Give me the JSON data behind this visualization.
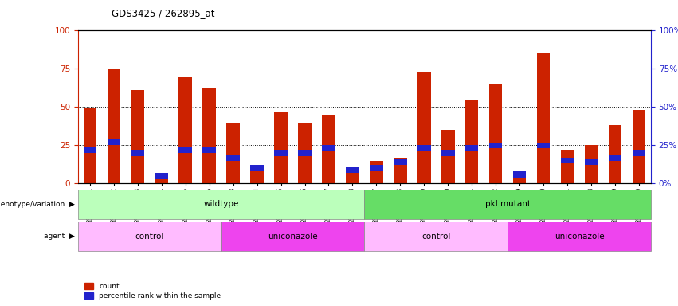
{
  "title": "GDS3425 / 262895_at",
  "samples": [
    "GSM299321",
    "GSM299322",
    "GSM299323",
    "GSM299324",
    "GSM299325",
    "GSM299326",
    "GSM299333",
    "GSM299334",
    "GSM299335",
    "GSM299336",
    "GSM299337",
    "GSM299338",
    "GSM299327",
    "GSM299328",
    "GSM299329",
    "GSM299330",
    "GSM299331",
    "GSM299332",
    "GSM299339",
    "GSM299340",
    "GSM299341",
    "GSM299408",
    "GSM299409",
    "GSM299410"
  ],
  "count_values": [
    49,
    75,
    61,
    3,
    70,
    62,
    40,
    11,
    47,
    40,
    45,
    11,
    15,
    17,
    73,
    35,
    55,
    65,
    7,
    85,
    22,
    25,
    38,
    48
  ],
  "percentile_values": [
    22,
    27,
    20,
    5,
    22,
    22,
    17,
    10,
    20,
    20,
    23,
    9,
    10,
    14,
    23,
    20,
    23,
    25,
    6,
    25,
    15,
    14,
    17,
    20
  ],
  "bar_color": "#cc2200",
  "percentile_color": "#2222cc",
  "ylim": [
    0,
    100
  ],
  "yticks": [
    0,
    25,
    50,
    75,
    100
  ],
  "groups": [
    {
      "label": "wildtype",
      "start": 0,
      "end": 12,
      "color": "#bbffbb"
    },
    {
      "label": "pkl mutant",
      "start": 12,
      "end": 24,
      "color": "#66dd66"
    }
  ],
  "agents": [
    {
      "label": "control",
      "start": 0,
      "end": 6,
      "color": "#ffbbff"
    },
    {
      "label": "uniconazole",
      "start": 6,
      "end": 12,
      "color": "#ee44ee"
    },
    {
      "label": "control",
      "start": 12,
      "end": 18,
      "color": "#ffbbff"
    },
    {
      "label": "uniconazole",
      "start": 18,
      "end": 24,
      "color": "#ee44ee"
    }
  ],
  "left_ylabel_color": "#cc2200",
  "right_ylabel_color": "#2222cc"
}
